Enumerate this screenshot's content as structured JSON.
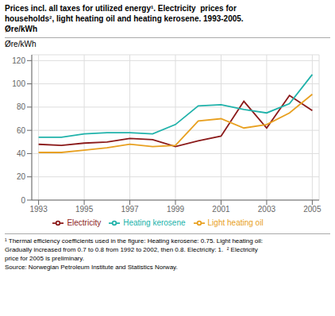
{
  "chart_data": {
    "type": "line",
    "title": [
      "Prices incl. all taxes for utilized energy¹. Electricity  prices for",
      "households², light heating oil and heating kerosene. 1993-2005.",
      "Øre/kWh"
    ],
    "y_label": "Øre/kWh",
    "x": [
      1993,
      1994,
      1995,
      1996,
      1997,
      1998,
      1999,
      2000,
      2001,
      2002,
      2003,
      2004,
      2005
    ],
    "series": [
      {
        "name": "Electricity",
        "color": "#8B1A1A",
        "values": [
          48,
          47,
          49,
          50,
          53,
          52,
          46,
          51,
          55,
          85,
          62,
          90,
          77
        ]
      },
      {
        "name": "Heating kerosene",
        "color": "#20B2AA",
        "values": [
          54,
          54,
          57,
          58,
          58,
          57,
          65,
          81,
          82,
          78,
          75,
          83,
          108
        ]
      },
      {
        "name": "Light heating oil",
        "color": "#E8A020",
        "values": [
          41,
          41,
          43,
          45,
          48,
          46,
          47,
          68,
          70,
          62,
          65,
          75,
          91
        ]
      }
    ],
    "xlim": [
      1992.7,
      2005.3
    ],
    "xticks": [
      1993,
      1995,
      1997,
      1999,
      2001,
      2003,
      2005
    ],
    "ylim": [
      0,
      125
    ],
    "yticks": [
      0,
      20,
      40,
      60,
      80,
      100,
      120
    ],
    "grid": true,
    "legend": "bottom",
    "annotations": [
      "¹ Thermal efficiency coefficients used in the figure: Heating kerosene: 0.75. Light heating oil:",
      "Gradually increased from 0.7 to 0.8 from 1992 to 2002, then 0.8. Electricity: 1.  ² Electricity",
      "price for 2005 is preliminary.",
      "Source: Norwegian Petroleum Institute and Statistics Norway."
    ]
  }
}
